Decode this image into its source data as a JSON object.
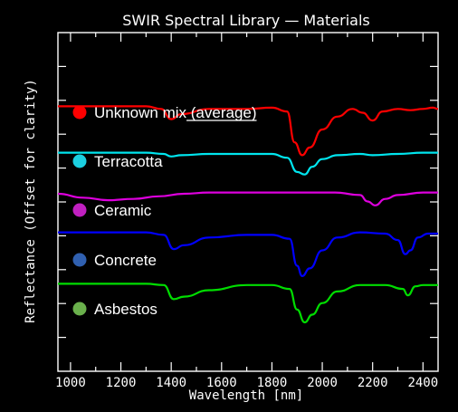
{
  "chart_data": {
    "type": "line",
    "title": "SWIR Spectral Library — Materials",
    "xlabel": "Wavelength [nm]",
    "ylabel": "Reflectance (Offset for clarity)",
    "xlim": [
      950,
      2460
    ],
    "ylim": [
      0,
      10
    ],
    "x_ticks": [
      1000,
      1200,
      1400,
      1600,
      1800,
      2000,
      2200,
      2400
    ],
    "grid": false,
    "legend_position": "left-inside",
    "background": "#000000",
    "series": [
      {
        "name": "Unknown mix (average)",
        "color": "#ff0000",
        "x": [
          950,
          1100,
          1300,
          1360,
          1400,
          1440,
          1550,
          1700,
          1800,
          1860,
          1890,
          1920,
          1950,
          2000,
          2060,
          2120,
          2160,
          2200,
          2240,
          2300,
          2350,
          2400,
          2440,
          2460
        ],
        "y": [
          8.4,
          8.4,
          8.4,
          8.3,
          7.9,
          8.1,
          8.3,
          8.3,
          8.35,
          8.2,
          7.0,
          6.5,
          6.8,
          7.5,
          8.0,
          8.3,
          8.15,
          7.85,
          8.2,
          8.3,
          8.25,
          8.3,
          8.35,
          8.3
        ]
      },
      {
        "name": "Terracotta",
        "color": "#00e5ee",
        "x": [
          950,
          1100,
          1300,
          1370,
          1400,
          1440,
          1550,
          1700,
          1800,
          1860,
          1900,
          1930,
          1960,
          2000,
          2060,
          2150,
          2200,
          2300,
          2400,
          2460
        ],
        "y": [
          6.6,
          6.6,
          6.6,
          6.55,
          6.45,
          6.5,
          6.55,
          6.55,
          6.55,
          6.4,
          5.85,
          5.75,
          6.05,
          6.35,
          6.5,
          6.55,
          6.5,
          6.55,
          6.6,
          6.6
        ],
        "legend_color": "#1ccfe0"
      },
      {
        "name": "Ceramic",
        "color": "#dd00dd",
        "x": [
          950,
          1050,
          1150,
          1250,
          1350,
          1450,
          1550,
          1650,
          1750,
          1850,
          1950,
          2050,
          2150,
          2180,
          2210,
          2250,
          2300,
          2400,
          2460
        ],
        "y": [
          5.0,
          4.85,
          4.75,
          4.8,
          4.9,
          5.0,
          5.05,
          5.05,
          5.05,
          5.05,
          5.05,
          5.05,
          4.95,
          4.7,
          4.55,
          4.8,
          4.95,
          5.05,
          5.05
        ],
        "legend_color": "#c020c0"
      },
      {
        "name": "Concrete",
        "color": "#0000ff",
        "x": [
          950,
          1100,
          1300,
          1370,
          1410,
          1450,
          1550,
          1700,
          1800,
          1870,
          1900,
          1920,
          1950,
          2000,
          2060,
          2150,
          2250,
          2300,
          2330,
          2350,
          2380,
          2420,
          2460
        ],
        "y": [
          3.5,
          3.5,
          3.5,
          3.4,
          2.85,
          3.0,
          3.3,
          3.4,
          3.4,
          3.25,
          2.2,
          1.8,
          2.1,
          2.8,
          3.3,
          3.5,
          3.45,
          3.2,
          2.65,
          2.8,
          3.3,
          3.45,
          3.45
        ],
        "legend_color": "#3060b0"
      },
      {
        "name": "Asbestos",
        "color": "#00dd00",
        "x": [
          950,
          1100,
          1300,
          1370,
          1410,
          1450,
          1550,
          1700,
          1800,
          1870,
          1900,
          1930,
          1960,
          2000,
          2060,
          2150,
          2250,
          2320,
          2340,
          2370,
          2400,
          2460
        ],
        "y": [
          1.5,
          1.5,
          1.5,
          1.45,
          0.9,
          1.0,
          1.25,
          1.45,
          1.45,
          1.3,
          0.5,
          0.0,
          0.3,
          0.75,
          1.2,
          1.45,
          1.45,
          1.3,
          1.05,
          1.4,
          1.45,
          1.45
        ],
        "legend_color": "#6ab04c"
      }
    ],
    "legend_color_first": "#ff0000"
  }
}
